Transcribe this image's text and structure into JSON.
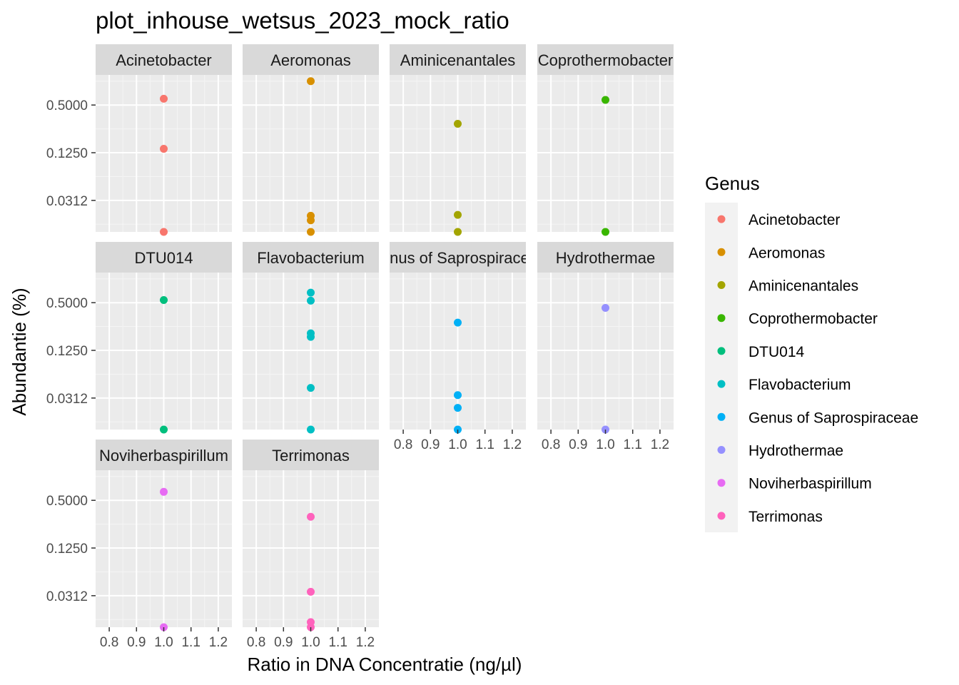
{
  "chart_data": {
    "type": "scatter",
    "title": "plot_inhouse_wetsus_2023_mock_ratio",
    "xlabel": "Ratio in DNA Concentratie (ng/µl)",
    "ylabel": "Abundantie (%)",
    "x_scale": "linear",
    "y_scale": "log2",
    "xlim": [
      0.75,
      1.25
    ],
    "ylim": [
      0.0125,
      1.2
    ],
    "x_ticks": [
      0.8,
      0.9,
      1.0,
      1.1,
      1.2
    ],
    "x_tick_labels": [
      "0.8",
      "0.9",
      "1.0",
      "1.1",
      "1.2"
    ],
    "y_ticks": [
      0.5,
      0.125,
      0.03125
    ],
    "y_tick_labels": [
      "0.5000",
      "0.1250",
      "0.0312"
    ],
    "grid": true,
    "legend": {
      "title": "Genus",
      "placement": "right",
      "entries": [
        "Acinetobacter",
        "Aeromonas",
        "Aminicenantales",
        "Coprothermobacter",
        "DTU014",
        "Flavobacterium",
        "Genus of Saprospiraceae",
        "Hydrothermae",
        "Noviherbaspirillum",
        "Terrimonas"
      ]
    },
    "panels": [
      {
        "name": "Acinetobacter",
        "color": "#F8766D",
        "x": [
          1.0,
          1.0,
          1.0
        ],
        "y": [
          0.6,
          0.14,
          0.0125
        ]
      },
      {
        "name": "Aeromonas",
        "color": "#D89000",
        "x": [
          1.0,
          1.0,
          1.0,
          1.0
        ],
        "y": [
          1.0,
          0.02,
          0.0175,
          0.0125
        ]
      },
      {
        "name": "Aminicenantales",
        "color": "#A3A500",
        "x": [
          1.0,
          1.0,
          1.0
        ],
        "y": [
          0.29,
          0.0205,
          0.0125
        ]
      },
      {
        "name": "Coprothermobacter",
        "color": "#39B600",
        "x": [
          1.0,
          1.0
        ],
        "y": [
          0.58,
          0.0125
        ]
      },
      {
        "name": "DTU014",
        "color": "#00BF7D",
        "x": [
          1.0,
          1.0
        ],
        "y": [
          0.54,
          0.0125
        ]
      },
      {
        "name": "Flavobacterium",
        "color": "#00BFC4",
        "x": [
          1.0,
          1.0,
          1.0,
          1.0,
          1.0,
          1.0
        ],
        "y": [
          0.67,
          0.53,
          0.205,
          0.185,
          0.042,
          0.0125
        ]
      },
      {
        "name": "Genus of Saprospiraceae",
        "color": "#00B0F6",
        "x": [
          1.0,
          1.0,
          1.0,
          1.0
        ],
        "y": [
          0.28,
          0.034,
          0.0235,
          0.0125
        ]
      },
      {
        "name": "Hydrothermae",
        "color": "#9590FF",
        "x": [
          1.0,
          1.0
        ],
        "y": [
          0.43,
          0.0125
        ]
      },
      {
        "name": "Noviherbaspirillum",
        "color": "#E76BF3",
        "x": [
          1.0,
          1.0
        ],
        "y": [
          0.64,
          0.0125
        ]
      },
      {
        "name": "Terrimonas",
        "color": "#FF62BC",
        "x": [
          1.0,
          1.0,
          1.0,
          1.0
        ],
        "y": [
          0.31,
          0.035,
          0.0145,
          0.0125
        ]
      }
    ]
  }
}
